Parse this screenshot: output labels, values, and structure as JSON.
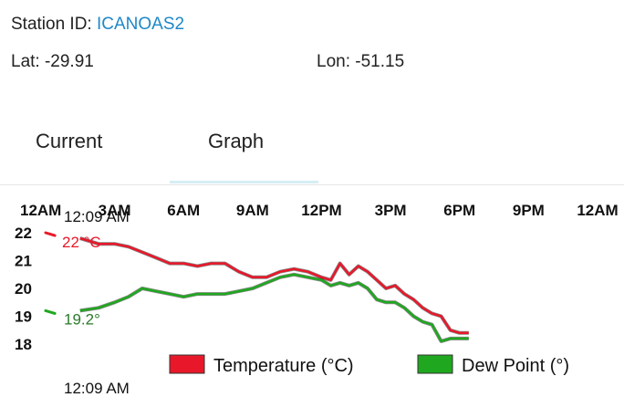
{
  "header": {
    "station_label": "Station ID: ",
    "station_id": "ICANOAS2",
    "lat": "Lat: -29.91",
    "lon": "Lon: -51.15"
  },
  "tabs": [
    {
      "label": "Current",
      "selected": false
    },
    {
      "label": "Graph",
      "selected": true
    }
  ],
  "colors": {
    "temperature": "#e8182a",
    "dew_point": "#1fa81f",
    "station_id": "#1e88c8",
    "tab_indicator": "#d7eef6"
  },
  "annotations": {
    "start_time_top": "12:09 AM",
    "start_time_bottom": "12:09 AM",
    "temp_value": "22 °C",
    "dew_value": "19.2°"
  },
  "chart_data": {
    "type": "line",
    "x_ticks": [
      "12AM",
      "3AM",
      "6AM",
      "9AM",
      "12PM",
      "3PM",
      "6PM",
      "9PM",
      "12AM"
    ],
    "y_ticks": [
      "22",
      "21",
      "20",
      "19",
      "18"
    ],
    "ylim": [
      18,
      22
    ],
    "x_range_hours": [
      0,
      24
    ],
    "legend_position": "bottom",
    "series": [
      {
        "name": "Temperature (°C)",
        "x_hours": [
          0.0,
          0.4,
          1.5,
          2.3,
          3.0,
          3.6,
          4.2,
          4.8,
          5.4,
          6.0,
          6.6,
          7.2,
          7.8,
          8.4,
          9.0,
          9.6,
          10.2,
          10.8,
          11.4,
          12.0,
          12.4,
          12.8,
          13.2,
          13.6,
          14.0,
          14.4,
          14.8,
          15.2,
          15.6,
          16.0,
          16.4,
          16.8,
          17.2,
          17.6,
          18.0,
          18.4
        ],
        "values": [
          22.0,
          21.9,
          21.8,
          21.6,
          21.6,
          21.5,
          21.3,
          21.1,
          20.9,
          20.9,
          20.8,
          20.9,
          20.9,
          20.6,
          20.4,
          20.4,
          20.6,
          20.7,
          20.6,
          20.4,
          20.3,
          20.9,
          20.5,
          20.8,
          20.6,
          20.3,
          20.0,
          20.1,
          19.8,
          19.6,
          19.3,
          19.1,
          19.0,
          18.5,
          18.4,
          18.4
        ]
      },
      {
        "name": "Dew Point (°)",
        "x_hours": [
          0.0,
          0.4,
          1.5,
          2.3,
          3.0,
          3.6,
          4.2,
          4.8,
          5.4,
          6.0,
          6.6,
          7.2,
          7.8,
          8.4,
          9.0,
          9.6,
          10.2,
          10.8,
          11.4,
          12.0,
          12.4,
          12.8,
          13.2,
          13.6,
          14.0,
          14.4,
          14.8,
          15.2,
          15.6,
          16.0,
          16.4,
          16.8,
          17.2,
          17.6,
          18.0,
          18.4
        ],
        "values": [
          19.2,
          19.1,
          19.2,
          19.3,
          19.5,
          19.7,
          20.0,
          19.9,
          19.8,
          19.7,
          19.8,
          19.8,
          19.8,
          19.9,
          20.0,
          20.2,
          20.4,
          20.5,
          20.4,
          20.3,
          20.1,
          20.2,
          20.1,
          20.2,
          20.0,
          19.6,
          19.5,
          19.5,
          19.3,
          19.0,
          18.8,
          18.7,
          18.1,
          18.2,
          18.2,
          18.2
        ]
      }
    ]
  }
}
